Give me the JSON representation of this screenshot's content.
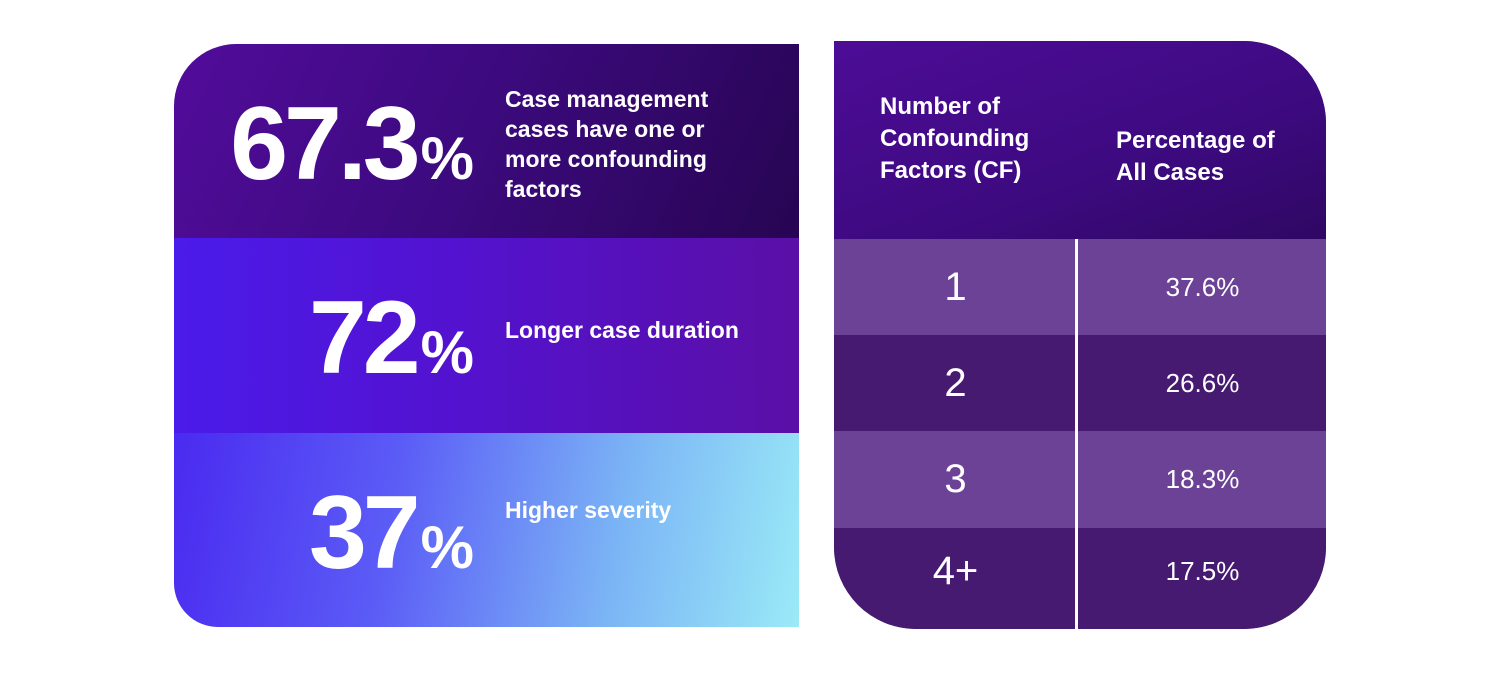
{
  "stats": [
    {
      "value": "67.3",
      "unit": "%",
      "description": "Case management cases have one or more confounding factors"
    },
    {
      "value": "72",
      "unit": "%",
      "description": "Longer case duration"
    },
    {
      "value": "37",
      "unit": "%",
      "description": "Higher severity"
    }
  ],
  "chart_data": {
    "type": "table",
    "columns": [
      "Number of Confounding Factors (CF)",
      "Percentage of All Cases"
    ],
    "rows": [
      {
        "cf": "1",
        "percentage": "37.6%"
      },
      {
        "cf": "2",
        "percentage": "26.6%"
      },
      {
        "cf": "3",
        "percentage": "18.3%"
      },
      {
        "cf": "4+",
        "percentage": "17.5%"
      }
    ],
    "values": [
      37.6,
      26.6,
      18.3,
      17.5
    ]
  },
  "colors": {
    "row_light": "#6c4297",
    "row_dark": "#451a70",
    "header": "#3d0a80",
    "accent_cyan": "#9aeaf7",
    "accent_blue": "#4b1bea"
  }
}
